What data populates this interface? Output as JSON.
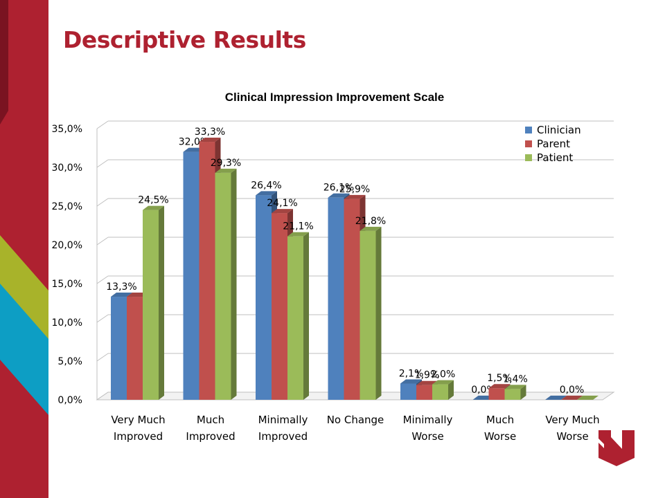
{
  "slide": {
    "title": "Descriptive Results",
    "title_color": "#AE2130",
    "brand_colors": {
      "red": "#AE2130",
      "dark_red": "#7A1321",
      "green": "#A8B32A",
      "teal": "#0D9EC4"
    },
    "logo_icon": "university-n-logo"
  },
  "chart_data": {
    "type": "bar",
    "title": "Clinical Impression Improvement Scale",
    "xlabel": "",
    "ylabel": "",
    "ylim": [
      0,
      35
    ],
    "yticks": [
      "0,0%",
      "5,0%",
      "10,0%",
      "15,0%",
      "20,0%",
      "25,0%",
      "30,0%",
      "35,0%"
    ],
    "grid": true,
    "legend_position": "top-right",
    "categories": [
      [
        "Very Much",
        "Improved"
      ],
      [
        "Much",
        "Improved"
      ],
      [
        "Minimally",
        "Improved"
      ],
      [
        "No Change"
      ],
      [
        "Minimally",
        "Worse"
      ],
      [
        "Much",
        "Worse"
      ],
      [
        "Very Much",
        "Worse"
      ]
    ],
    "series": [
      {
        "name": "Clinician",
        "color": "#4F81BD",
        "values": [
          13.3,
          32.0,
          26.4,
          26.1,
          2.1,
          0.0,
          0.0
        ],
        "labels": [
          "13,3%",
          "32,0%",
          "26,4%",
          "26,1%",
          "2,1%",
          "0,0%",
          null
        ]
      },
      {
        "name": "Parent",
        "color": "#C0504D",
        "values": [
          13.3,
          33.3,
          24.1,
          25.9,
          1.9,
          1.5,
          0.0
        ],
        "labels": [
          null,
          "33,3%",
          "24,1%",
          "25,9%",
          "1,9%",
          "1,5%",
          "0,0%"
        ]
      },
      {
        "name": "Patient",
        "color": "#9BBB59",
        "values": [
          24.5,
          29.3,
          21.1,
          21.8,
          2.0,
          1.4,
          0.0
        ],
        "labels": [
          "24,5%",
          "29,3%",
          "21,1%",
          "21,8%",
          "2,0%",
          "1,4%",
          null
        ]
      }
    ]
  }
}
